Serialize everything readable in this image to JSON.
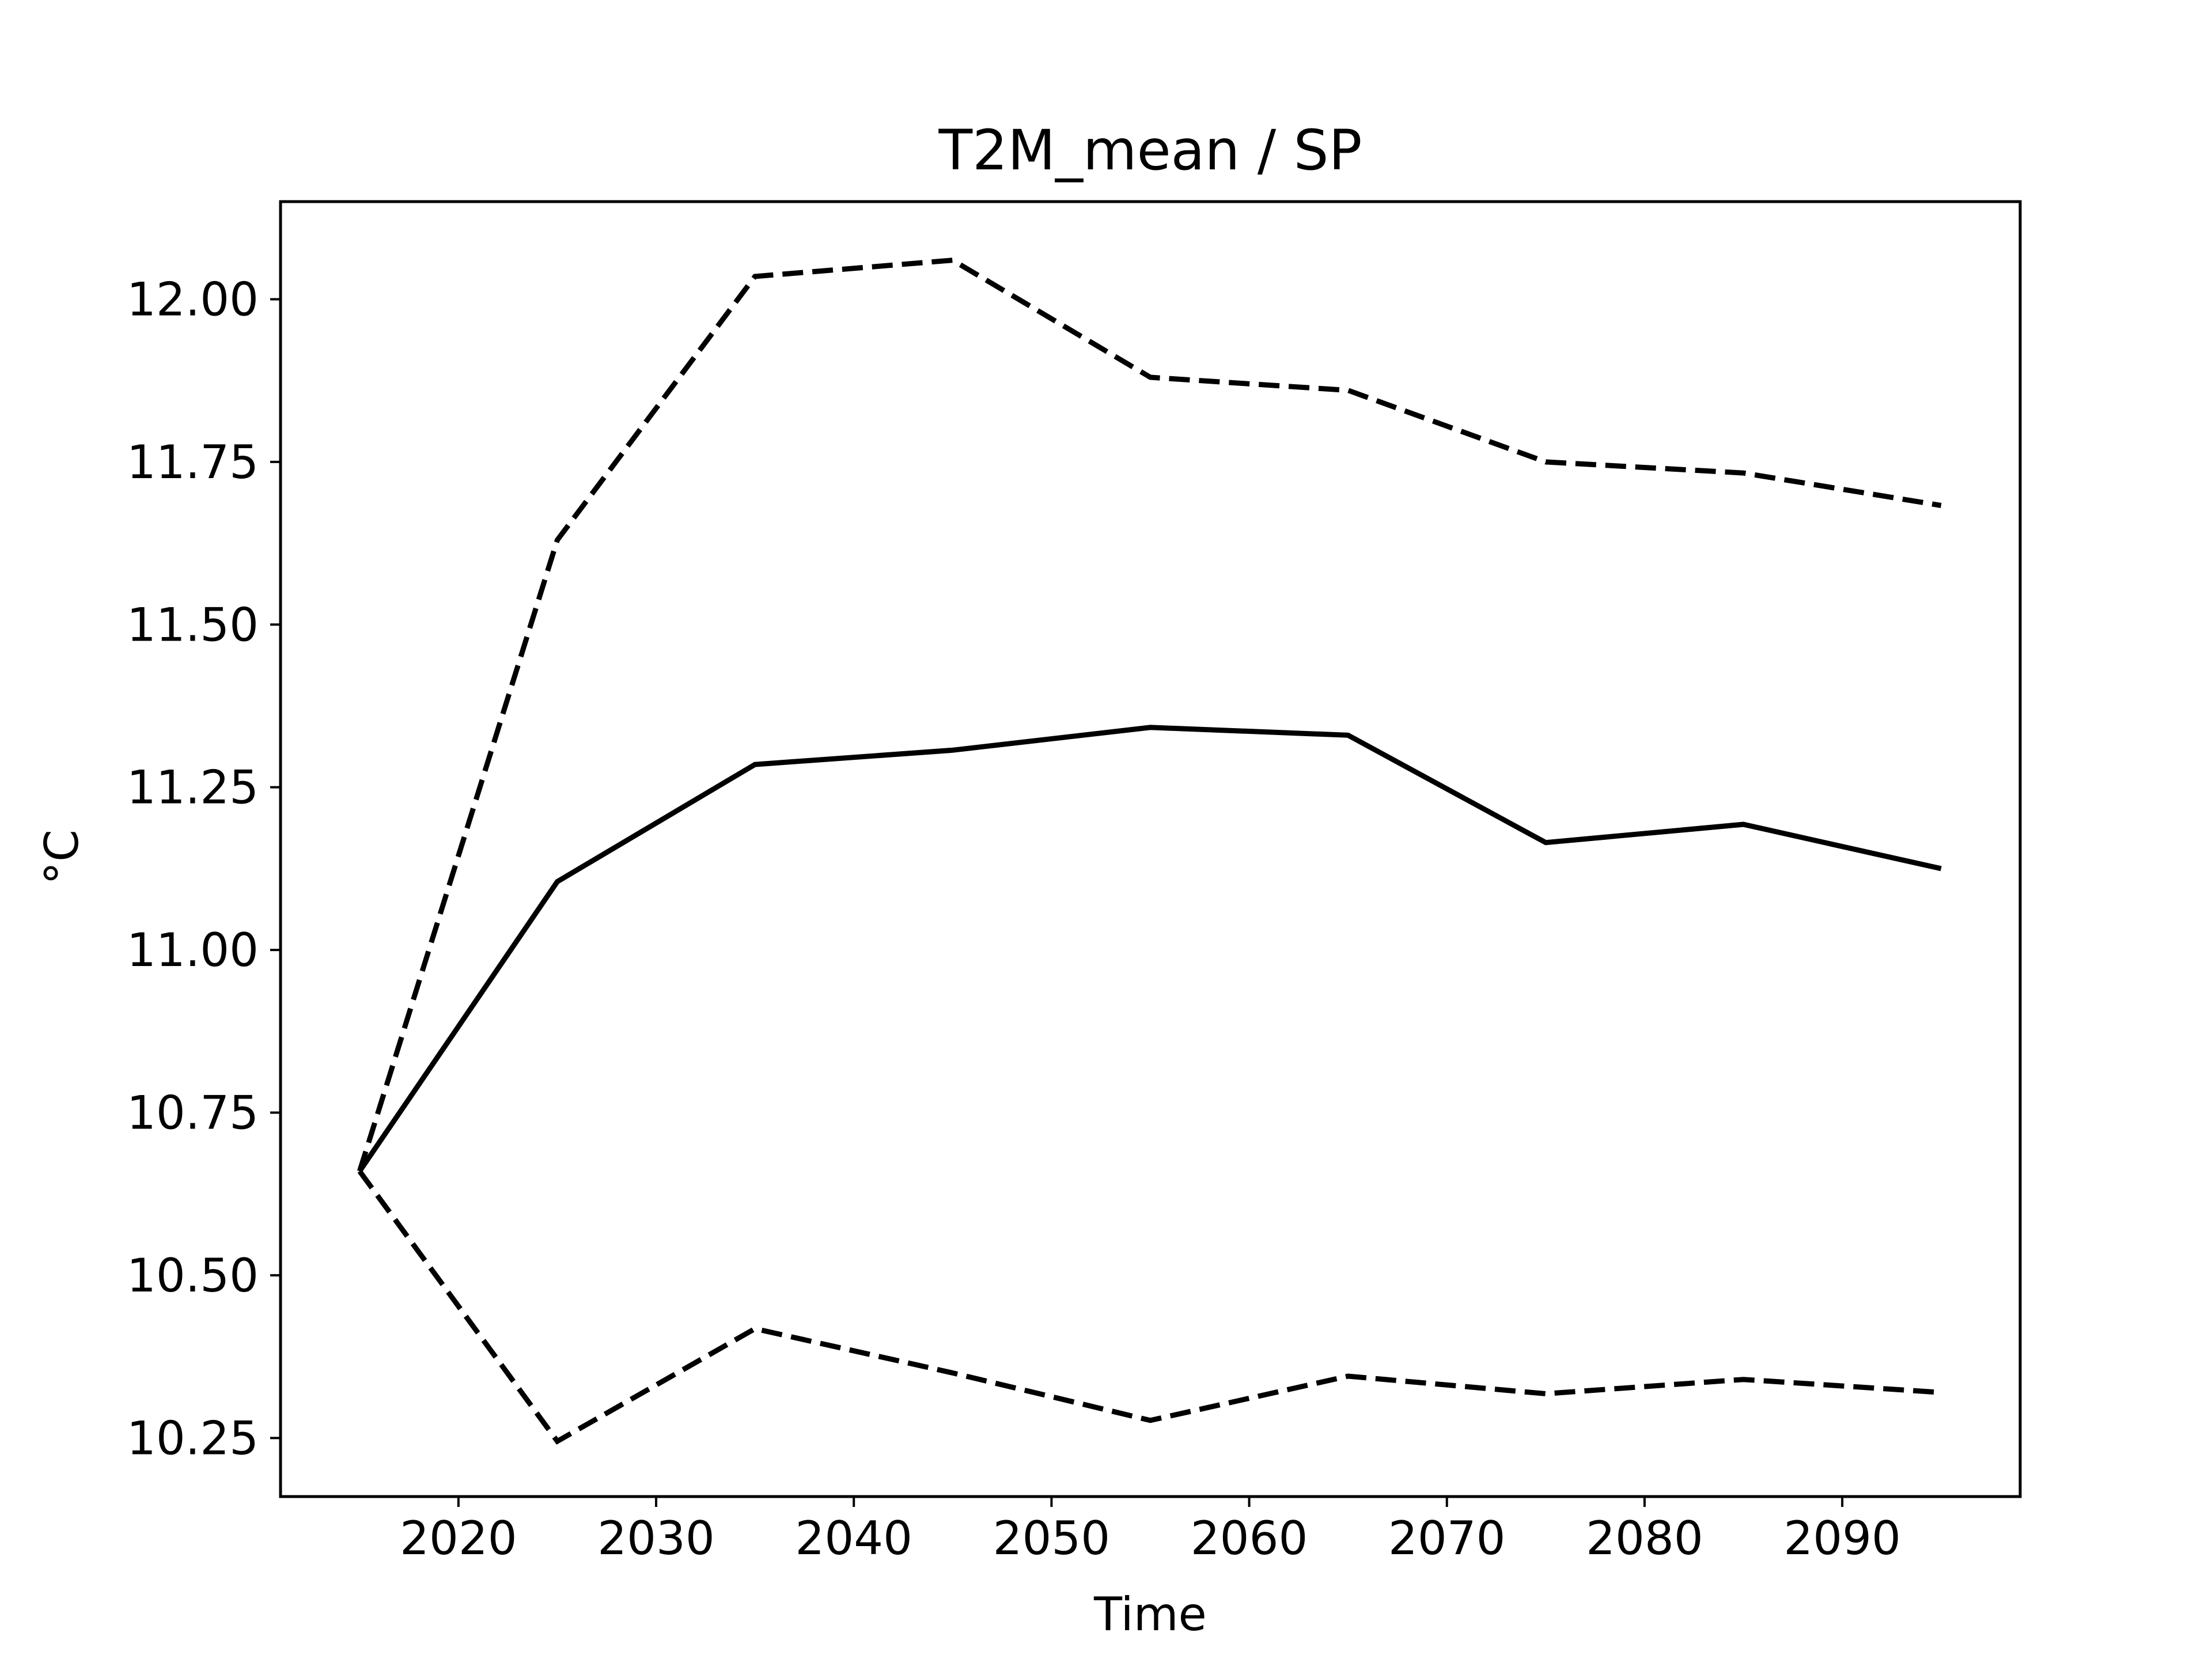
{
  "chart_data": {
    "type": "line",
    "title": "T2M_mean / SP",
    "xlabel": "Time",
    "ylabel": "°C",
    "x": [
      2015,
      2025,
      2035,
      2045,
      2055,
      2065,
      2075,
      2085,
      2095
    ],
    "series": [
      {
        "style": "solid",
        "values": [
          10.66,
          11.105,
          11.285,
          11.307,
          11.342,
          11.33,
          11.165,
          11.193,
          11.125
        ]
      },
      {
        "style": "dashed",
        "values": [
          10.66,
          11.63,
          12.035,
          12.06,
          11.88,
          11.86,
          11.75,
          11.733,
          11.683
        ]
      },
      {
        "style": "dashed",
        "values": [
          10.66,
          10.245,
          10.418,
          10.35,
          10.277,
          10.345,
          10.318,
          10.34,
          10.32
        ]
      }
    ],
    "xlim": [
      2011,
      2099
    ],
    "ylim": [
      10.16,
      12.15
    ],
    "xticks": [
      2020,
      2030,
      2040,
      2050,
      2060,
      2070,
      2080,
      2090
    ],
    "xtick_labels": [
      "2020",
      "2030",
      "2040",
      "2050",
      "2060",
      "2070",
      "2080",
      "2090"
    ],
    "yticks": [
      10.25,
      10.5,
      10.75,
      11.0,
      11.25,
      11.5,
      11.75,
      12.0
    ],
    "ytick_labels": [
      "10.25",
      "10.50",
      "10.75",
      "11.00",
      "11.25",
      "11.50",
      "11.75",
      "12.00"
    ],
    "grid": false,
    "legend": "none",
    "line_color": "#000000"
  }
}
